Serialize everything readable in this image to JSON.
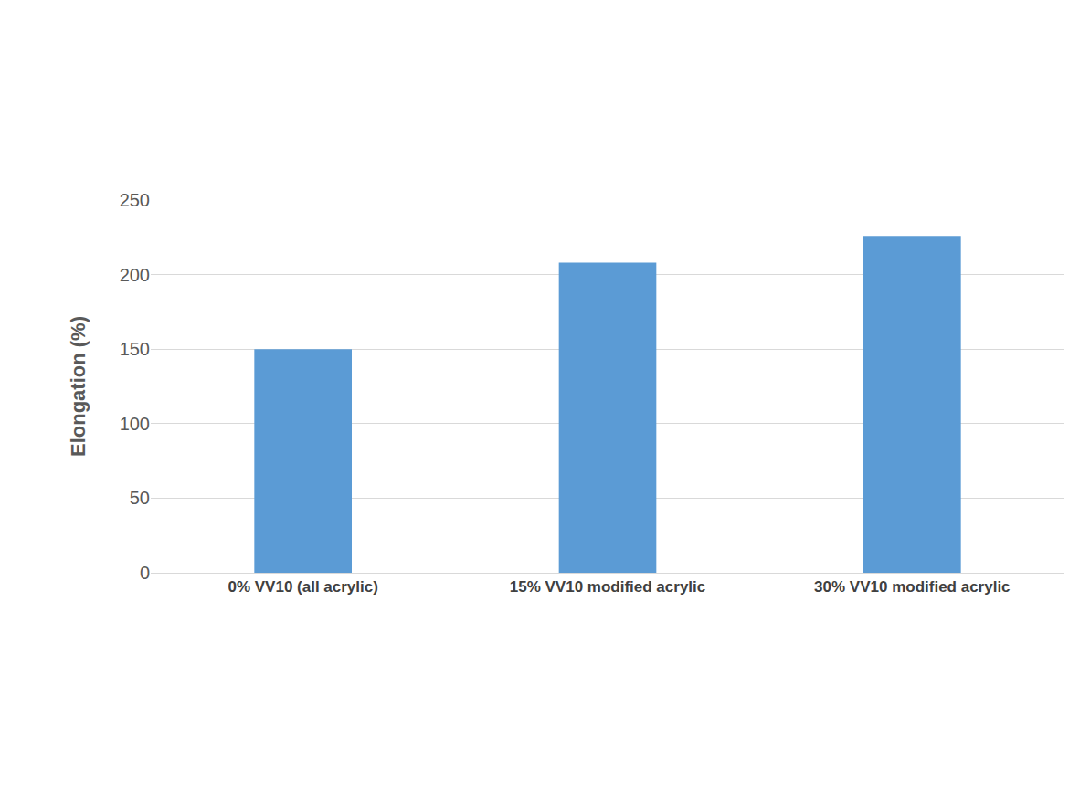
{
  "chart_data": {
    "type": "bar",
    "y_label": "Elongation (%)",
    "categories": [
      "0% VV10 (all acrylic)",
      "15% VV10 modified acrylic",
      "30% VV10 modified acrylic"
    ],
    "values": [
      150,
      208,
      226
    ],
    "color": "#5b9bd5",
    "ylim": [
      0,
      250
    ],
    "yticks": [
      0,
      50,
      100,
      150,
      200,
      250
    ],
    "grid": true
  }
}
